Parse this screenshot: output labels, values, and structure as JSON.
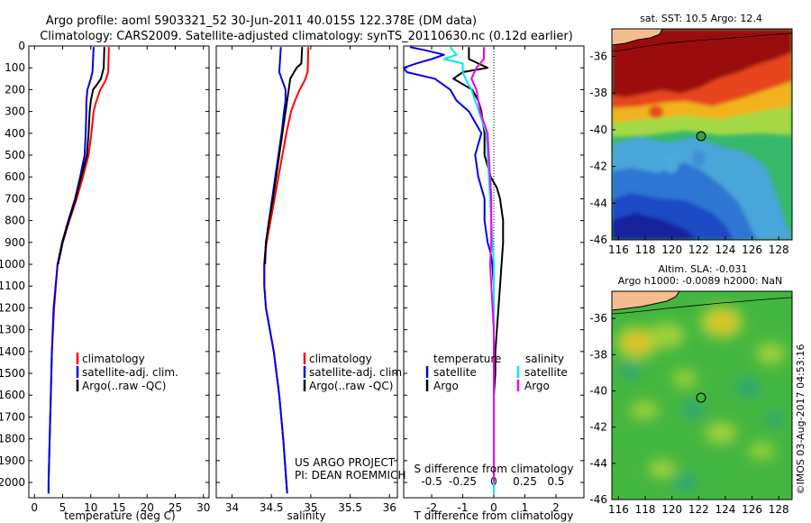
{
  "header": {
    "title_line1": "Argo profile: aoml 5903321_52 30-Jun-2011 40.015S 122.378E (DM data)",
    "title_line2": "Climatology: CARS2009. Satellite-adjusted climatology: synTS_20110630.nc (0.12d earlier)"
  },
  "credits": {
    "project": "US ARGO PROJECT",
    "pi": "PI: DEAN ROEMMICH",
    "stamp": "©IMOS 03-Aug-2017 04:53:16"
  },
  "colors": {
    "climatology": "#ff0000",
    "satellite": "#0000ee",
    "argo": "#000000",
    "sat_salinity": "#00e5ee",
    "argo_salinity": "#ee00ee"
  },
  "chart_data": [
    {
      "id": "temperature",
      "type": "line",
      "xlabel": "temperature (deg C)",
      "ylabel": "",
      "xlim": [
        -1,
        31
      ],
      "ylim": [
        2070,
        0
      ],
      "xticks": [
        0,
        5,
        10,
        15,
        20,
        25,
        30
      ],
      "yticks": [
        0,
        100,
        200,
        300,
        400,
        500,
        600,
        700,
        800,
        900,
        1000,
        1100,
        1200,
        1300,
        1400,
        1500,
        1600,
        1700,
        1800,
        1900,
        2000
      ],
      "legend": [
        "climatology",
        "satellite-adj. clim.",
        "Argo(..raw -QC)"
      ],
      "legend_placement": "middle-center",
      "series": [
        {
          "name": "climatology",
          "color": "#ff0000",
          "depth": [
            5,
            120,
            160,
            200,
            260,
            300,
            400,
            500,
            600,
            700,
            800,
            900,
            1000,
            1200,
            1400,
            1600,
            1800,
            2000,
            2050
          ],
          "values": [
            13.2,
            13.1,
            12.6,
            11.7,
            10.9,
            10.5,
            10.1,
            9.6,
            8.6,
            7.5,
            6.2,
            5.0,
            4.1,
            3.5,
            3.1,
            2.9,
            2.7,
            2.5,
            2.5
          ]
        },
        {
          "name": "satellite-adj. clim.",
          "color": "#0000ee",
          "depth": [
            5,
            120,
            160,
            200,
            260,
            300,
            400,
            500,
            600,
            700,
            800,
            900,
            1000,
            1200,
            1400,
            1600,
            1800,
            2000,
            2050
          ],
          "values": [
            10.5,
            10.3,
            9.9,
            9.4,
            9.2,
            9.2,
            9.1,
            8.9,
            8.1,
            7.2,
            6.0,
            4.9,
            4.1,
            3.4,
            3.1,
            2.9,
            2.7,
            2.5,
            2.5
          ]
        },
        {
          "name": "Argo(..raw -QC)",
          "color": "#000000",
          "depth": [
            5,
            100,
            150,
            180,
            200,
            250,
            300,
            400,
            500,
            600,
            700,
            800,
            900,
            1000
          ],
          "values": [
            12.4,
            12.3,
            11.8,
            11.0,
            10.4,
            10.0,
            9.8,
            9.6,
            9.3,
            8.3,
            7.3,
            6.1,
            5.0,
            4.2
          ]
        }
      ]
    },
    {
      "id": "salinity",
      "type": "line",
      "xlabel": "salinity",
      "ylabel": "",
      "xlim": [
        33.8,
        36.1
      ],
      "ylim": [
        2070,
        0
      ],
      "xticks": [
        34,
        34.5,
        35,
        35.5,
        36
      ],
      "legend": [
        "climatology",
        "satellite-adj. clim.",
        "Argo(..raw -QC)"
      ],
      "legend_placement": "middle-center",
      "series": [
        {
          "name": "climatology",
          "color": "#ff0000",
          "depth": [
            5,
            120,
            160,
            200,
            250,
            300,
            400,
            500,
            600,
            700,
            800,
            900,
            1000,
            1100,
            1200,
            1400,
            1600,
            1800,
            2000,
            2050
          ],
          "values": [
            34.97,
            34.96,
            34.92,
            34.86,
            34.8,
            34.75,
            34.69,
            34.64,
            34.59,
            34.54,
            34.49,
            34.44,
            34.41,
            34.41,
            34.43,
            34.53,
            34.6,
            34.65,
            34.69,
            34.7
          ]
        },
        {
          "name": "satellite-adj. clim.",
          "color": "#0000ee",
          "depth": [
            5,
            120,
            160,
            200,
            250,
            300,
            400,
            500,
            600,
            700,
            800,
            900,
            1000,
            1100,
            1200,
            1400,
            1600,
            1800,
            2000,
            2050
          ],
          "values": [
            34.62,
            34.6,
            34.64,
            34.68,
            34.68,
            34.66,
            34.63,
            34.59,
            34.55,
            34.51,
            34.47,
            34.43,
            34.41,
            34.41,
            34.43,
            34.53,
            34.6,
            34.65,
            34.69,
            34.7
          ]
        },
        {
          "name": "Argo(..raw -QC)",
          "color": "#000000",
          "depth": [
            5,
            80,
            100,
            150,
            200,
            250,
            300,
            400,
            500,
            600,
            700,
            800,
            900,
            1000
          ],
          "values": [
            34.89,
            34.88,
            34.82,
            34.74,
            34.72,
            34.7,
            34.68,
            34.64,
            34.6,
            34.56,
            34.52,
            34.47,
            34.43,
            34.42
          ]
        }
      ]
    },
    {
      "id": "difference",
      "type": "line",
      "xlabel": "T difference from climatology",
      "xlabel_top": "S difference from climatology",
      "xlim": [
        -2.9,
        2.9
      ],
      "ylim": [
        2070,
        0
      ],
      "xticks_T": [
        -2,
        -1,
        0,
        1,
        2
      ],
      "xticks_S": [
        "-0.5",
        "-0.25",
        "0",
        "0.25",
        "0.5"
      ],
      "xticks_S_values": [
        -0.5,
        -0.25,
        0,
        0.25,
        0.5
      ],
      "legend_title_left": "temperature",
      "legend_title_right": "salinity",
      "legend": [
        "satellite",
        "Argo",
        "satellite",
        "Argo"
      ],
      "series": [
        {
          "name": "T satellite",
          "color": "#0000ee",
          "depth": [
            5,
            20,
            40,
            60,
            80,
            100,
            120,
            150,
            200,
            250,
            300,
            400,
            500,
            600,
            700,
            800,
            900,
            950,
            1000,
            1100,
            1200,
            1400,
            1600,
            1800,
            2000,
            2050
          ],
          "values": [
            -2.7,
            -2.2,
            -1.6,
            -2.0,
            -2.5,
            -2.9,
            -2.8,
            -1.9,
            -1.4,
            -1.2,
            -0.8,
            -0.4,
            -0.6,
            -0.5,
            -0.3,
            -0.3,
            -0.2,
            -0.1,
            -0.05,
            0,
            0,
            0,
            0,
            0,
            0,
            0
          ]
        },
        {
          "name": "T Argo",
          "color": "#000000",
          "depth": [
            5,
            60,
            80,
            100,
            120,
            150,
            200,
            250,
            300,
            400,
            500,
            600,
            650,
            700,
            750,
            800,
            900,
            1000,
            1100,
            1200,
            1300,
            1400,
            1500,
            1600,
            1800,
            2000
          ],
          "values": [
            -0.8,
            -0.8,
            -0.5,
            -0.2,
            -1.0,
            -1.3,
            -0.7,
            -0.5,
            -0.4,
            -0.3,
            -0.3,
            -0.1,
            0.1,
            0.2,
            0.25,
            0.3,
            0.3,
            0.25,
            0.2,
            0.15,
            0.1,
            0.05,
            0.05,
            0,
            0,
            0
          ]
        },
        {
          "name": "S satellite",
          "color": "#00e5ee",
          "depth": [
            5,
            40,
            60,
            80,
            100,
            120,
            160,
            200,
            300,
            400,
            600,
            800,
            1000,
            1200,
            1400,
            1600,
            1800,
            2000,
            2050
          ],
          "values": [
            -0.35,
            -0.3,
            -0.4,
            -0.25,
            -0.25,
            -0.25,
            -0.22,
            -0.18,
            -0.12,
            -0.06,
            -0.04,
            -0.02,
            0,
            0,
            0,
            0,
            0,
            0,
            0
          ]
        },
        {
          "name": "S Argo",
          "color": "#ee00ee",
          "depth": [
            5,
            60,
            100,
            150,
            200,
            300,
            400,
            500,
            600,
            700,
            800,
            900,
            1000,
            1200,
            1300,
            1500,
            1600,
            1800,
            2000
          ],
          "values": [
            -0.08,
            -0.08,
            -0.14,
            -0.18,
            -0.14,
            -0.11,
            -0.05,
            -0.04,
            -0.03,
            -0.02,
            -0.02,
            -0.02,
            -0.03,
            -0.01,
            0,
            0,
            0,
            0,
            0
          ]
        }
      ]
    },
    {
      "id": "sst_map",
      "type": "heatmap",
      "title": "sat. SST: 10.5  Argo: 12.4",
      "xlim": [
        115.5,
        129
      ],
      "ylim": [
        -46,
        -34.5
      ],
      "xticks": [
        116,
        118,
        120,
        122,
        124,
        126,
        128
      ],
      "yticks": [
        -36,
        -38,
        -40,
        -42,
        -44,
        -46
      ],
      "float_position": {
        "lon": 122.378,
        "lat": -40.015
      }
    },
    {
      "id": "sla_map",
      "type": "heatmap",
      "title_line1": "Altim. SLA: -0.031",
      "title_line2": "Argo h1000: -0.0089 h2000: NaN",
      "xlim": [
        115.5,
        129
      ],
      "ylim": [
        -46,
        -34.5
      ],
      "xticks": [
        116,
        118,
        120,
        122,
        124,
        126,
        128
      ],
      "yticks": [
        -36,
        -38,
        -40,
        -42,
        -44,
        -46
      ],
      "float_position": {
        "lon": 122.378,
        "lat": -40.015
      }
    }
  ]
}
